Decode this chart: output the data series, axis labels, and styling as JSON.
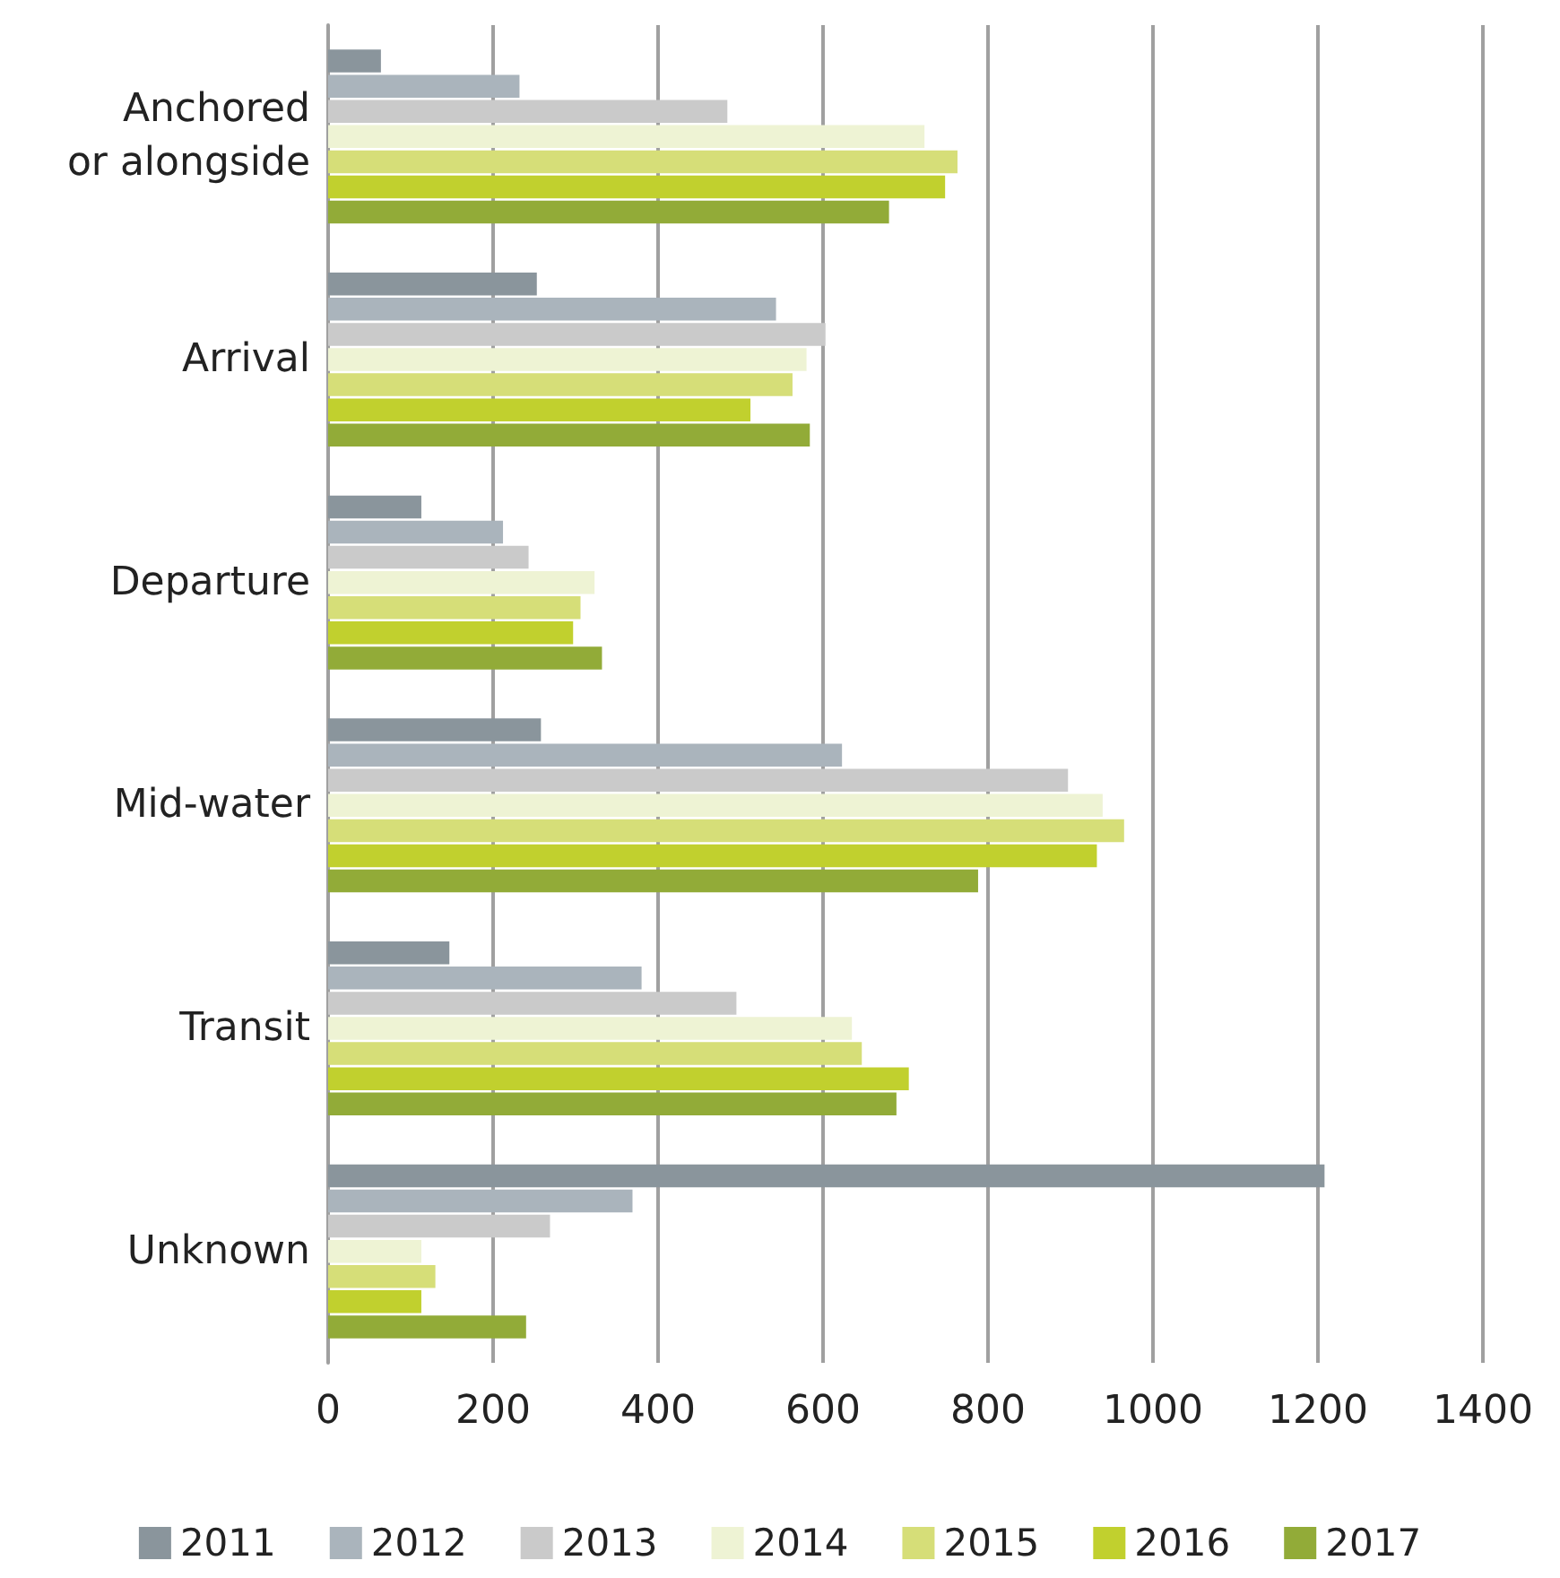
{
  "chart_data": {
    "type": "bar",
    "orientation": "horizontal",
    "categories": [
      "Anchored\nor alongside",
      "Arrival",
      "Departure",
      "Mid-water",
      "Transit",
      "Unknown"
    ],
    "series": [
      {
        "name": "2011",
        "color": "#8a959c",
        "values": [
          64,
          253,
          113,
          258,
          147,
          1208
        ]
      },
      {
        "name": "2012",
        "color": "#aab4bc",
        "values": [
          232,
          543,
          212,
          623,
          380,
          369
        ]
      },
      {
        "name": "2013",
        "color": "#cacaca",
        "values": [
          484,
          603,
          243,
          897,
          495,
          269
        ]
      },
      {
        "name": "2014",
        "color": "#eef3d4",
        "values": [
          723,
          580,
          323,
          939,
          635,
          113
        ]
      },
      {
        "name": "2015",
        "color": "#d6de78",
        "values": [
          763,
          563,
          306,
          965,
          647,
          130
        ]
      },
      {
        "name": "2016",
        "color": "#c1d02e",
        "values": [
          748,
          512,
          297,
          932,
          704,
          113
        ]
      },
      {
        "name": "2017",
        "color": "#92ab38",
        "values": [
          680,
          584,
          332,
          788,
          689,
          240
        ]
      }
    ],
    "xlim": [
      0,
      1400
    ],
    "xticks": [
      0,
      200,
      400,
      600,
      800,
      1000,
      1200,
      1400
    ],
    "grid": "x",
    "legend": "bottom"
  }
}
